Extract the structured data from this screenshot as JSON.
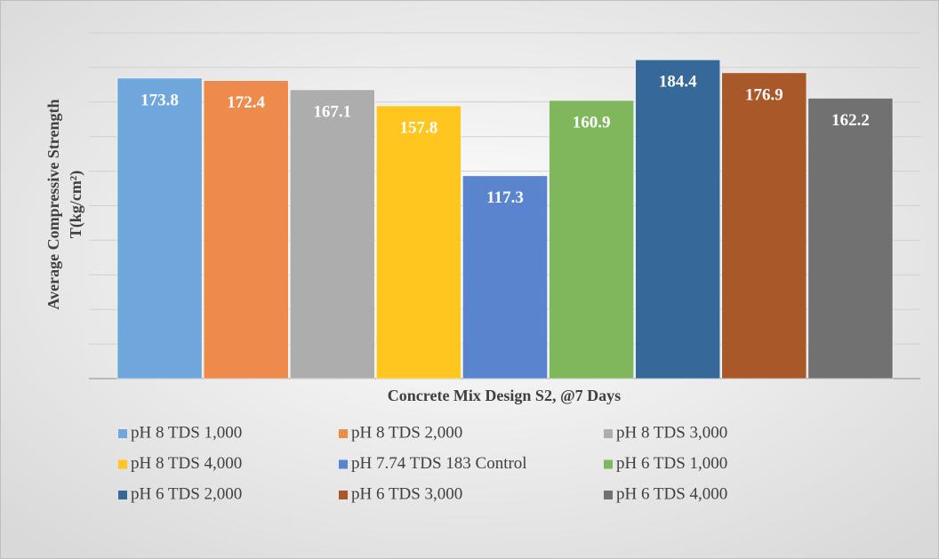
{
  "chart_data": {
    "type": "bar",
    "ylabel": [
      "Average Compressive Strength",
      "T(kg/cm²)"
    ],
    "xlabel": "Concrete Mix Design S2, @7 Days",
    "ylim": [
      0,
      200
    ],
    "yticks": [
      0,
      20,
      40,
      60,
      80,
      100,
      120,
      140,
      160,
      180,
      200
    ],
    "grid": true,
    "series": [
      {
        "name": "pH 8 TDS 1,000",
        "color": "#6fa6dc",
        "values": [
          173.8
        ]
      },
      {
        "name": "pH 8 TDS 2,000",
        "color": "#ee8a4c",
        "values": [
          172.4
        ]
      },
      {
        "name": "pH 8 TDS 3,000",
        "color": "#adadad",
        "values": [
          167.1
        ]
      },
      {
        "name": "pH 8 TDS 4,000",
        "color": "#ffc61f",
        "values": [
          157.8
        ]
      },
      {
        "name": "pH 7.74 TDS 183 Control",
        "color": "#5b84cf",
        "values": [
          117.3
        ]
      },
      {
        "name": "pH 6 TDS 1,000",
        "color": "#80b75d",
        "values": [
          160.9
        ]
      },
      {
        "name": "pH 6 TDS 2,000",
        "color": "#36699a",
        "values": [
          184.4
        ]
      },
      {
        "name": "pH 6 TDS 3,000",
        "color": "#a9582a",
        "values": [
          176.9
        ]
      },
      {
        "name": "pH 6 TDS 4,000",
        "color": "#717171",
        "values": [
          162.2
        ]
      }
    ]
  }
}
